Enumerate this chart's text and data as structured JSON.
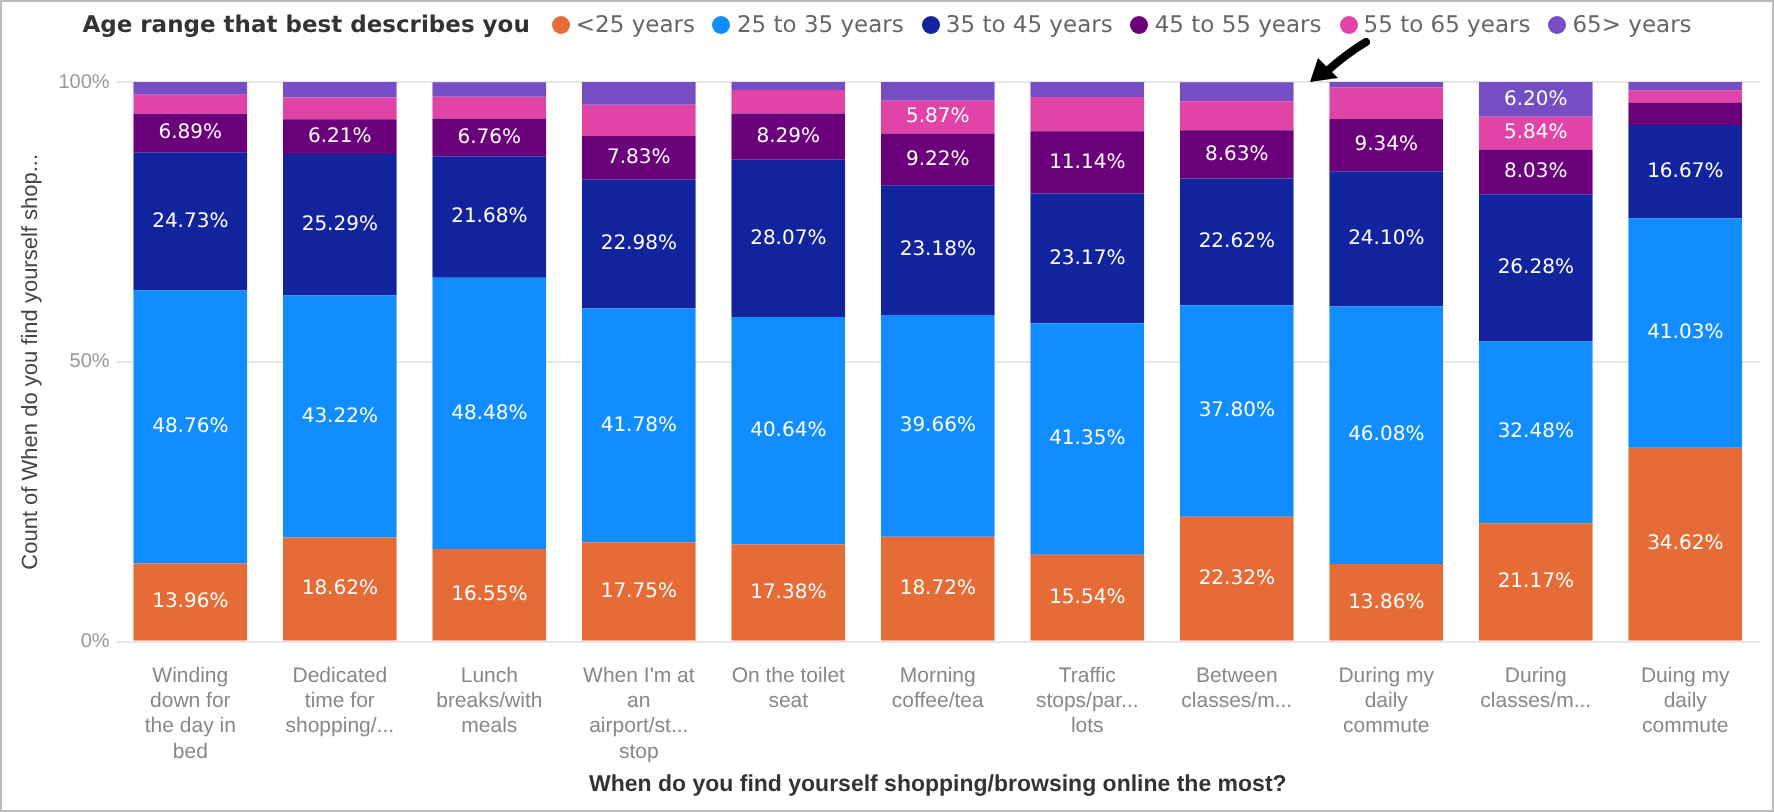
{
  "chart_data": {
    "type": "bar",
    "stacked": true,
    "legend": "top",
    "grid": "y",
    "legend_title": "Age range that best describes you",
    "xlabel": "When do you find yourself shopping/browsing online the most?",
    "ylabel": "Count of When do you find yourself shop...",
    "categories": [
      "Winding down for the day in bed",
      "Dedicated time for shopping/...",
      "Lunch breaks/with meals",
      "When I'm at an airport/st... stop",
      "On the toilet seat",
      "Morning coffee/tea",
      "Traffic stops/par... lots",
      "Between classes/m...",
      "During my daily commute",
      "During classes/m...",
      "Duing my daily commute"
    ],
    "ylim": [
      0,
      100
    ],
    "yticks": [
      {
        "value": 0,
        "label": "0%"
      },
      {
        "value": 50,
        "label": "50%"
      },
      {
        "value": 100,
        "label": "100%"
      }
    ],
    "series": [
      {
        "name": "<25 years",
        "color": "#e66c37",
        "values": [
          13.96,
          18.62,
          16.55,
          17.75,
          17.38,
          18.72,
          15.54,
          22.32,
          13.86,
          21.17,
          34.62
        ],
        "value_labels": [
          "13.96%",
          "18.62%",
          "16.55%",
          "17.75%",
          "17.38%",
          "18.72%",
          "15.54%",
          "22.32%",
          "13.86%",
          "21.17%",
          "34.62%"
        ]
      },
      {
        "name": "25 to 35 years",
        "color": "#118dff",
        "values": [
          48.76,
          43.22,
          48.48,
          41.78,
          40.64,
          39.66,
          41.35,
          37.8,
          46.08,
          32.48,
          41.03
        ],
        "value_labels": [
          "48.76%",
          "43.22%",
          "48.48%",
          "41.78%",
          "40.64%",
          "39.66%",
          "41.35%",
          "37.80%",
          "46.08%",
          "32.48%",
          "41.03%"
        ]
      },
      {
        "name": "35 to 45 years",
        "color": "#12239e",
        "values": [
          24.73,
          25.29,
          21.68,
          22.98,
          28.07,
          23.18,
          23.17,
          22.62,
          24.1,
          26.28,
          16.67
        ],
        "value_labels": [
          "24.73%",
          "25.29%",
          "21.68%",
          "22.98%",
          "28.07%",
          "23.18%",
          "23.17%",
          "22.62%",
          "24.10%",
          "26.28%",
          "16.67%"
        ]
      },
      {
        "name": "45 to 55 years",
        "color": "#6b007b",
        "values": [
          6.89,
          6.21,
          6.76,
          7.83,
          8.29,
          9.22,
          11.14,
          8.63,
          9.34,
          8.03,
          4.0
        ],
        "value_labels": [
          "6.89%",
          "6.21%",
          "6.76%",
          "7.83%",
          "8.29%",
          "9.22%",
          "11.14%",
          "8.63%",
          "9.34%",
          "8.03%",
          null
        ]
      },
      {
        "name": "55 to 65 years",
        "color": "#e044a7",
        "values": [
          3.4,
          3.9,
          3.9,
          5.6,
          4.2,
          5.87,
          6.1,
          5.2,
          5.7,
          5.84,
          2.2
        ],
        "value_labels": [
          null,
          null,
          null,
          null,
          null,
          "5.87%",
          null,
          null,
          null,
          "5.84%",
          null
        ]
      },
      {
        "name": "65> years",
        "color": "#744ec2",
        "values": [
          2.3,
          2.8,
          2.6,
          4.1,
          1.4,
          3.4,
          2.7,
          3.4,
          0.9,
          6.2,
          1.5
        ],
        "value_labels": [
          null,
          null,
          null,
          null,
          null,
          null,
          null,
          null,
          null,
          "6.20%",
          null
        ]
      }
    ]
  }
}
